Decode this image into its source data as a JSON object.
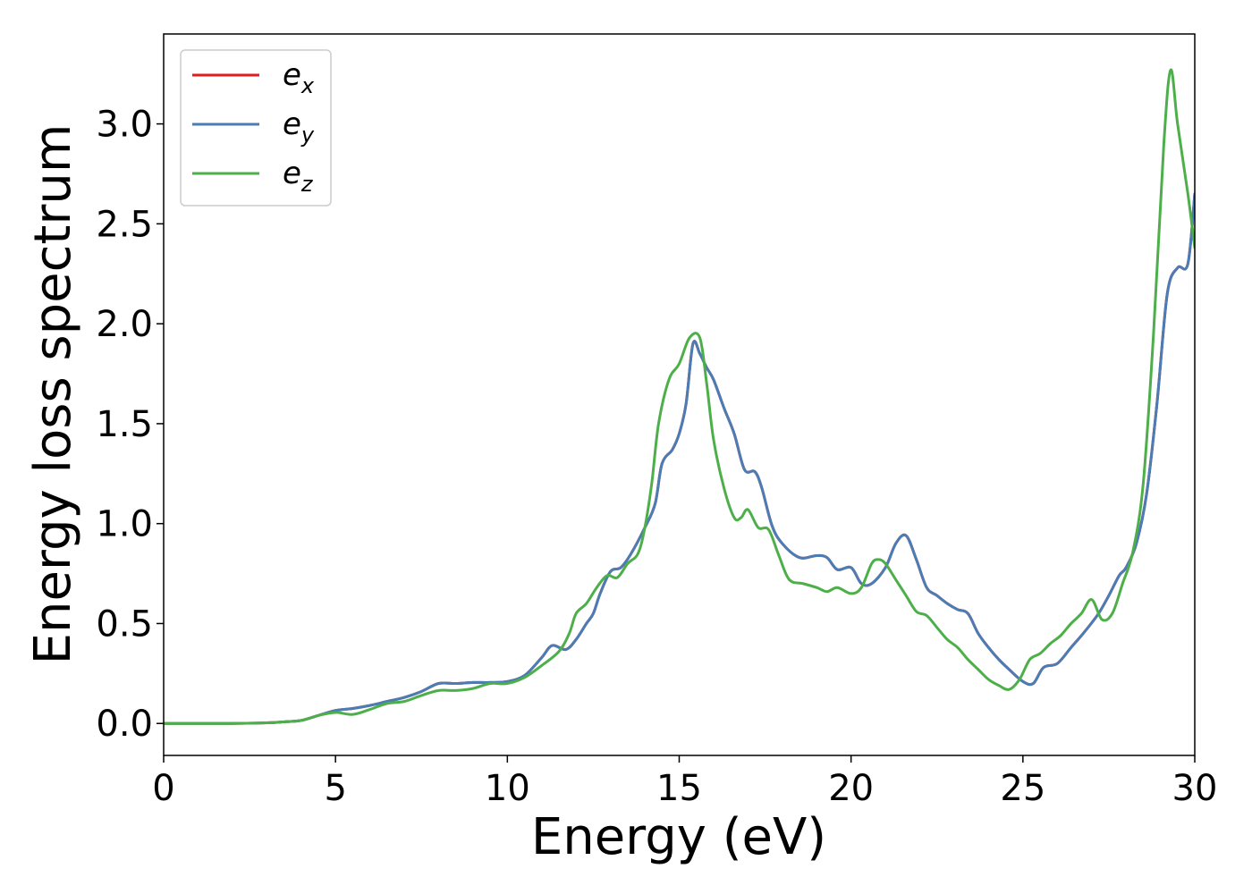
{
  "chart_data": {
    "type": "line",
    "title": "",
    "xlabel": "Energy (eV)",
    "ylabel": "Energy loss spectrum",
    "xlim": [
      0,
      30
    ],
    "ylim": [
      -0.16,
      3.45
    ],
    "xticks": [
      0,
      5,
      10,
      15,
      20,
      25,
      30
    ],
    "xtick_labels": [
      "0",
      "5",
      "10",
      "15",
      "20",
      "25",
      "30"
    ],
    "yticks": [
      0.0,
      0.5,
      1.0,
      1.5,
      2.0,
      2.5,
      3.0
    ],
    "ytick_labels": [
      "0.0",
      "0.5",
      "1.0",
      "1.5",
      "2.0",
      "2.5",
      "3.0"
    ],
    "grid": false,
    "legend_position": "top-left",
    "series": [
      {
        "name_base": "e",
        "name_sub": "x",
        "color": "#e41a1c",
        "x": [
          0,
          1,
          2,
          3,
          3.5,
          4,
          4.5,
          5,
          5.5,
          6,
          6.5,
          7,
          7.5,
          8,
          8.5,
          9,
          9.5,
          10,
          10.5,
          11,
          11.3,
          11.7,
          12,
          12.3,
          12.5,
          12.7,
          13,
          13.3,
          13.6,
          14,
          14.3,
          14.5,
          14.8,
          15,
          15.2,
          15.4,
          15.6,
          15.8,
          16,
          16.3,
          16.6,
          16.9,
          17.2,
          17.4,
          17.7,
          18,
          18.5,
          19,
          19.3,
          19.6,
          20,
          20.3,
          20.6,
          21,
          21.3,
          21.6,
          21.9,
          22.2,
          22.5,
          22.8,
          23.1,
          23.4,
          23.7,
          24,
          24.3,
          24.6,
          25,
          25.3,
          25.6,
          26,
          26.4,
          26.8,
          27.2,
          27.5,
          27.8,
          28,
          28.3,
          28.6,
          28.9,
          29.2,
          29.5,
          29.8,
          30
        ],
        "y": [
          0.0,
          0.0,
          0.0,
          0.003,
          0.008,
          0.015,
          0.04,
          0.065,
          0.075,
          0.09,
          0.11,
          0.13,
          0.16,
          0.2,
          0.2,
          0.205,
          0.205,
          0.21,
          0.24,
          0.33,
          0.39,
          0.37,
          0.42,
          0.5,
          0.55,
          0.65,
          0.76,
          0.78,
          0.85,
          0.98,
          1.1,
          1.3,
          1.37,
          1.45,
          1.6,
          1.9,
          1.85,
          1.78,
          1.72,
          1.58,
          1.45,
          1.27,
          1.26,
          1.18,
          0.99,
          0.9,
          0.83,
          0.84,
          0.83,
          0.77,
          0.78,
          0.7,
          0.7,
          0.78,
          0.9,
          0.94,
          0.82,
          0.68,
          0.64,
          0.6,
          0.57,
          0.55,
          0.45,
          0.38,
          0.32,
          0.27,
          0.21,
          0.2,
          0.28,
          0.3,
          0.38,
          0.46,
          0.55,
          0.64,
          0.74,
          0.78,
          0.9,
          1.15,
          1.6,
          2.15,
          2.28,
          2.3,
          2.65
        ]
      },
      {
        "name_base": "e",
        "name_sub": "y",
        "color": "#4a7db5",
        "x": [
          0,
          1,
          2,
          3,
          3.5,
          4,
          4.5,
          5,
          5.5,
          6,
          6.5,
          7,
          7.5,
          8,
          8.5,
          9,
          9.5,
          10,
          10.5,
          11,
          11.3,
          11.7,
          12,
          12.3,
          12.5,
          12.7,
          13,
          13.3,
          13.6,
          14,
          14.3,
          14.5,
          14.8,
          15,
          15.2,
          15.4,
          15.6,
          15.8,
          16,
          16.3,
          16.6,
          16.9,
          17.2,
          17.4,
          17.7,
          18,
          18.5,
          19,
          19.3,
          19.6,
          20,
          20.3,
          20.6,
          21,
          21.3,
          21.6,
          21.9,
          22.2,
          22.5,
          22.8,
          23.1,
          23.4,
          23.7,
          24,
          24.3,
          24.6,
          25,
          25.3,
          25.6,
          26,
          26.4,
          26.8,
          27.2,
          27.5,
          27.8,
          28,
          28.3,
          28.6,
          28.9,
          29.2,
          29.5,
          29.8,
          30
        ],
        "y": [
          0.0,
          0.0,
          0.0,
          0.003,
          0.008,
          0.015,
          0.04,
          0.065,
          0.075,
          0.09,
          0.11,
          0.13,
          0.16,
          0.2,
          0.2,
          0.205,
          0.205,
          0.21,
          0.24,
          0.33,
          0.39,
          0.37,
          0.42,
          0.5,
          0.55,
          0.65,
          0.76,
          0.78,
          0.85,
          0.98,
          1.1,
          1.3,
          1.37,
          1.45,
          1.6,
          1.9,
          1.85,
          1.78,
          1.72,
          1.58,
          1.45,
          1.27,
          1.26,
          1.18,
          0.99,
          0.9,
          0.83,
          0.84,
          0.83,
          0.77,
          0.78,
          0.7,
          0.7,
          0.78,
          0.9,
          0.94,
          0.82,
          0.68,
          0.64,
          0.6,
          0.57,
          0.55,
          0.45,
          0.38,
          0.32,
          0.27,
          0.21,
          0.2,
          0.28,
          0.3,
          0.38,
          0.46,
          0.55,
          0.64,
          0.74,
          0.78,
          0.9,
          1.15,
          1.6,
          2.15,
          2.28,
          2.3,
          2.65
        ]
      },
      {
        "name_base": "e",
        "name_sub": "z",
        "color": "#4daf4a",
        "x": [
          0,
          1,
          2,
          3,
          3.5,
          4,
          4.5,
          5,
          5.5,
          6,
          6.5,
          7,
          7.5,
          8,
          8.5,
          9,
          9.5,
          10,
          10.5,
          11,
          11.5,
          11.8,
          12,
          12.3,
          12.6,
          12.9,
          13.2,
          13.5,
          13.8,
          14,
          14.2,
          14.4,
          14.7,
          15,
          15.3,
          15.6,
          15.8,
          16,
          16.3,
          16.6,
          16.8,
          17,
          17.3,
          17.6,
          17.9,
          18.2,
          18.6,
          19,
          19.3,
          19.6,
          20,
          20.3,
          20.6,
          20.8,
          21,
          21.3,
          21.6,
          21.9,
          22.2,
          22.5,
          22.8,
          23.1,
          23.4,
          23.7,
          24,
          24.3,
          24.6,
          24.9,
          25.2,
          25.5,
          25.8,
          26.1,
          26.4,
          26.7,
          27,
          27.3,
          27.6,
          27.9,
          28.2,
          28.5,
          28.8,
          29.1,
          29.3,
          29.5,
          29.8,
          30
        ],
        "y": [
          0.0,
          0.0,
          0.0,
          0.003,
          0.008,
          0.015,
          0.04,
          0.055,
          0.045,
          0.07,
          0.1,
          0.11,
          0.14,
          0.165,
          0.165,
          0.175,
          0.2,
          0.2,
          0.23,
          0.29,
          0.36,
          0.45,
          0.55,
          0.6,
          0.68,
          0.74,
          0.73,
          0.8,
          0.85,
          0.98,
          1.2,
          1.5,
          1.72,
          1.8,
          1.93,
          1.93,
          1.7,
          1.42,
          1.18,
          1.03,
          1.03,
          1.07,
          0.98,
          0.97,
          0.84,
          0.72,
          0.7,
          0.68,
          0.66,
          0.68,
          0.65,
          0.68,
          0.8,
          0.82,
          0.8,
          0.72,
          0.64,
          0.56,
          0.54,
          0.48,
          0.42,
          0.38,
          0.32,
          0.27,
          0.22,
          0.19,
          0.17,
          0.22,
          0.32,
          0.35,
          0.4,
          0.44,
          0.5,
          0.55,
          0.62,
          0.52,
          0.55,
          0.7,
          0.86,
          1.2,
          1.95,
          2.9,
          3.27,
          3.0,
          2.65,
          2.38
        ]
      }
    ]
  }
}
